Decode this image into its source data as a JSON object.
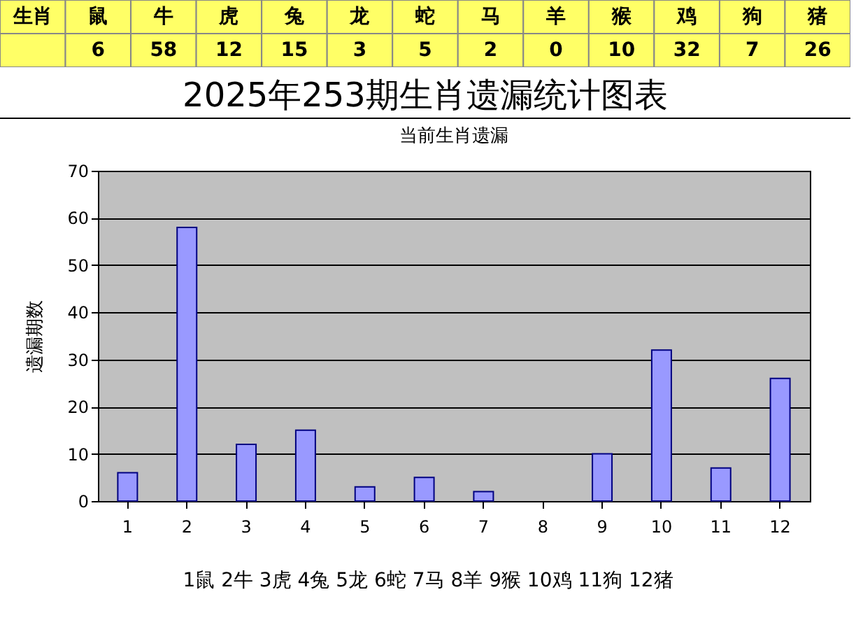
{
  "chart_data": [
    {
      "type": "other",
      "xlabel": "生肖",
      "categories": [
        "鼠",
        "牛",
        "虎",
        "兔",
        "龙",
        "蛇",
        "马",
        "羊",
        "猴",
        "鸡",
        "狗",
        "猪"
      ],
      "values": [
        6,
        58,
        12,
        15,
        3,
        5,
        2,
        0,
        10,
        32,
        7,
        26
      ],
      "data_labels": true
    },
    {
      "type": "bar",
      "title": "2025年253期生肖遗漏统计图表",
      "subtitle": "当前生肖遗漏",
      "ylabel": "遗漏期数",
      "categories": [
        "1",
        "2",
        "3",
        "4",
        "5",
        "6",
        "7",
        "8",
        "9",
        "10",
        "11",
        "12"
      ],
      "values": [
        6,
        58,
        12,
        15,
        3,
        5,
        2,
        0,
        10,
        32,
        7,
        26
      ],
      "color": "#9999ff",
      "ylim": [
        0,
        70
      ],
      "yticks": [
        0,
        10,
        20,
        30,
        40,
        50,
        60,
        70
      ],
      "grid": "y",
      "annotations": [
        "1鼠 2牛 3虎 4兔 5龙 6蛇 7马 8羊 9猴 10鸡 11狗 12猪"
      ]
    }
  ]
}
